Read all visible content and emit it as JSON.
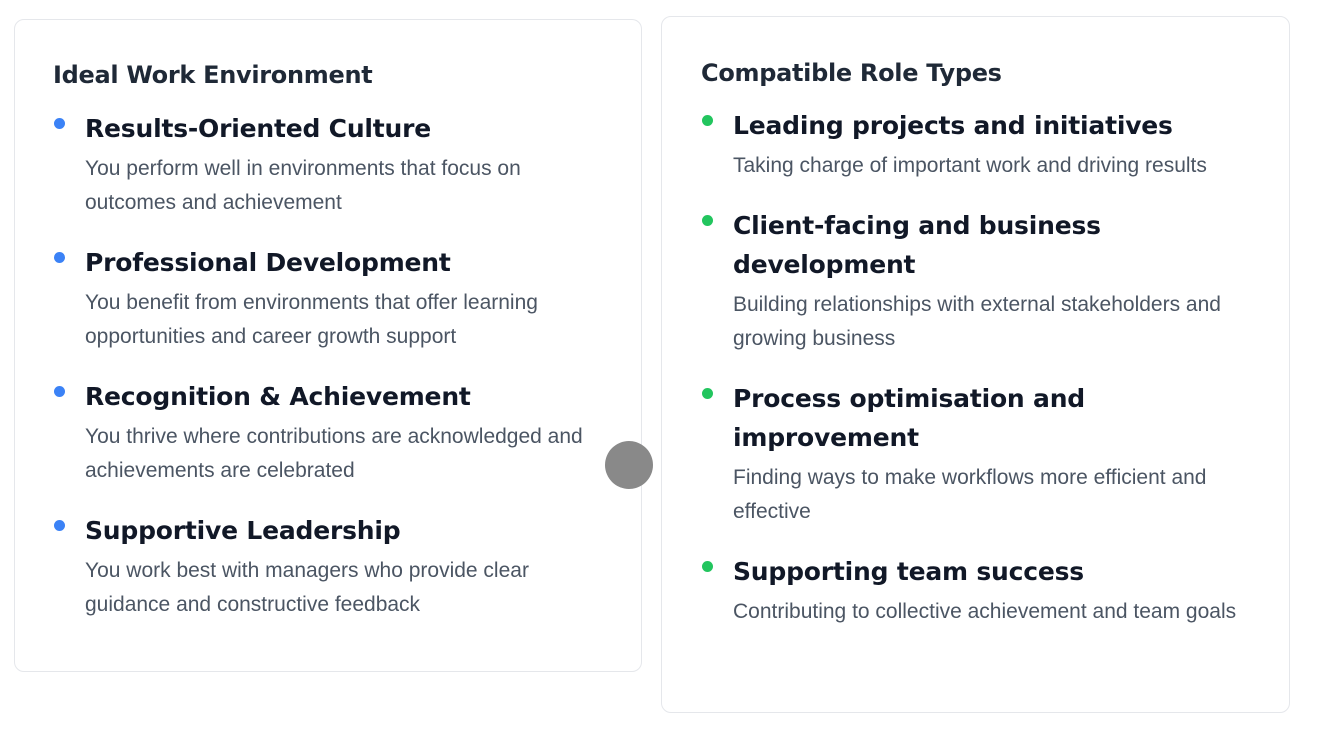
{
  "colors": {
    "blue_bullet": "#3b82f6",
    "green_bullet": "#22c55e",
    "handle": "#898989"
  },
  "environment": {
    "title": "Ideal Work Environment",
    "items": [
      {
        "title": "Results-Oriented Culture",
        "desc": "You perform well in environments that focus on outcomes and achievement"
      },
      {
        "title": "Professional Development",
        "desc": "You benefit from environments that offer learning opportunities and career growth support"
      },
      {
        "title": "Recognition & Achievement",
        "desc": "You thrive where contributions are acknowledged and achievements are celebrated"
      },
      {
        "title": "Supportive Leadership",
        "desc": "You work best with managers who provide clear guidance and constructive feedback"
      }
    ]
  },
  "roles": {
    "title": "Compatible Role Types",
    "items": [
      {
        "title": "Leading projects and initiatives",
        "desc": "Taking charge of important work and driving results"
      },
      {
        "title": "Client-facing and business development",
        "desc": "Building relationships with external stakeholders and growing business"
      },
      {
        "title": "Process optimisation and improvement",
        "desc": "Finding ways to make workflows more efficient and effective"
      },
      {
        "title": "Supporting team success",
        "desc": "Contributing to collective achievement and team goals"
      }
    ]
  }
}
